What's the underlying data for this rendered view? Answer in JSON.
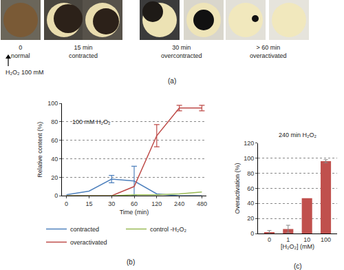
{
  "panel_a": {
    "panel": "(a)",
    "treatment": "H₂O₂ 100 mM",
    "stages": [
      {
        "time": "0",
        "state": "normal"
      },
      {
        "time": "15 min",
        "state": "contracted"
      },
      {
        "time": "30 min",
        "state": "overcontracted"
      },
      {
        "time": "> 60 min",
        "state": "overactivated"
      }
    ]
  },
  "chart_data": [
    {
      "type": "line",
      "panel": "(b)",
      "annotation": "100 mM H₂O₂",
      "x_label": "Time (min)",
      "y_label": "Relative content (%)",
      "categories": [
        "0",
        "15",
        "30",
        "60",
        "120",
        "240",
        "480"
      ],
      "ylim": [
        0,
        100
      ],
      "yticks": [
        0,
        20,
        40,
        60,
        80,
        100
      ],
      "grid": true,
      "legend": "bottom",
      "series": [
        {
          "name": "contracted",
          "color": "#4f81bd",
          "values": [
            1,
            5,
            18,
            16,
            2,
            0,
            0
          ],
          "errors": [
            null,
            null,
            4,
            16,
            null,
            null,
            null
          ]
        },
        {
          "name": "overactivated",
          "color": "#be4b48",
          "values": [
            0,
            0,
            0,
            10,
            65,
            95,
            95
          ],
          "errors": [
            null,
            null,
            null,
            null,
            12,
            3,
            3
          ]
        },
        {
          "name": "control -H₂O₂",
          "color": "#98b954",
          "values": [
            0,
            0,
            0,
            1,
            1,
            2,
            4
          ],
          "errors": [
            null,
            null,
            null,
            null,
            null,
            null,
            null
          ]
        }
      ]
    },
    {
      "type": "bar",
      "panel": "(c)",
      "title": "240 min H₂O₂",
      "x_label": "[H₂O₂] (mM)",
      "y_label": "Overactivation (%)",
      "categories": [
        "0",
        "1",
        "10",
        "100"
      ],
      "values": [
        2,
        6,
        47,
        96
      ],
      "errors": [
        2,
        5,
        null,
        2
      ],
      "color": "#c0504d",
      "ylim": [
        0,
        120
      ],
      "yticks": [
        0,
        20,
        40,
        60,
        80,
        100,
        120
      ],
      "grid": true
    }
  ]
}
